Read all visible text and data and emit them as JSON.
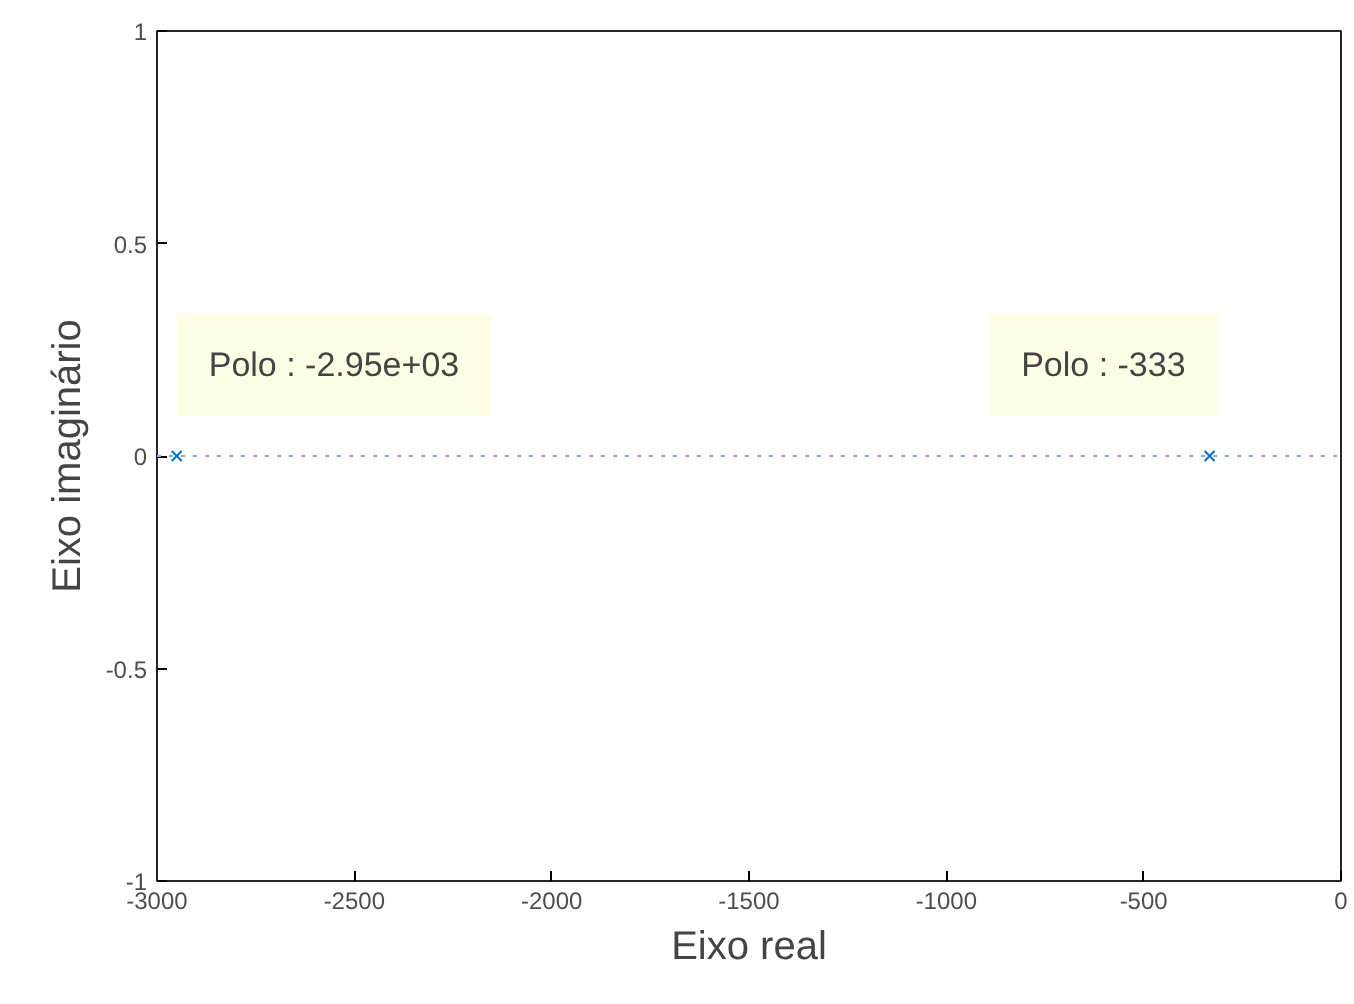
{
  "chart_data": {
    "type": "scatter",
    "xlabel": "Eixo real",
    "ylabel": "Eixo imaginário",
    "x": [
      -2950,
      -333
    ],
    "series": [
      {
        "color": "#0072bd",
        "values": [
          0,
          0
        ]
      }
    ],
    "marker": "cross",
    "grid": false,
    "xlim": [
      -3000,
      0
    ],
    "xticks": [
      -3000,
      -2500,
      -2000,
      -1500,
      -1000,
      -500,
      0
    ],
    "ylim": [
      -1,
      1
    ],
    "yticks": [
      -1,
      -0.5,
      0,
      0.5,
      1
    ],
    "ref_lines": [
      {
        "axis": "y",
        "value": 0,
        "label": null,
        "color": "#8fa8c8",
        "line_style": "dotted"
      }
    ],
    "annotations": [
      {
        "text": "Polo : -2.95e+03",
        "x": -2950,
        "y": 0
      },
      {
        "text": "Polo : -333",
        "x": -333,
        "y": 0
      }
    ]
  }
}
